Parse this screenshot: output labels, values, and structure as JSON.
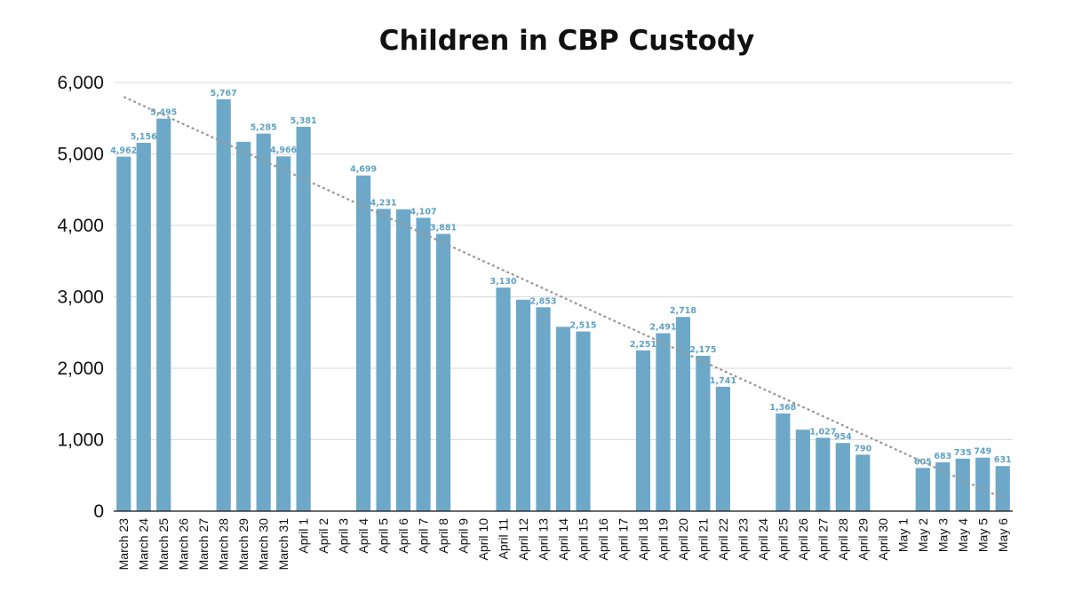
{
  "chart_data": {
    "type": "bar",
    "title": "Children in CBP Custody",
    "xlabel": "",
    "ylabel": "",
    "ylim": [
      0,
      6000
    ],
    "yticks": [
      "0",
      "1,000",
      "2,000",
      "3,000",
      "4,000",
      "5,000",
      "6,000"
    ],
    "grid": true,
    "legend": "none",
    "trendline": {
      "style": "dotted",
      "start_value": 5800,
      "end_value": 180
    },
    "colors": {
      "bar": "#6ea8c8",
      "label": "#5fa2c4",
      "grid": "#d9d9d9",
      "trend": "#999999"
    },
    "categories": [
      "March 23",
      "March 24",
      "March 25",
      "March 26",
      "March 27",
      "March 28",
      "March 29",
      "March 30",
      "March 31",
      "April 1",
      "April 2",
      "April 3",
      "April 4",
      "April 5",
      "April 6",
      "April 7",
      "April 8",
      "April 9",
      "April 10",
      "April 11",
      "April 12",
      "April 13",
      "April 14",
      "April 15",
      "April 16",
      "April 17",
      "April 18",
      "April 19",
      "April 20",
      "April 21",
      "April 22",
      "April 23",
      "April 24",
      "April 25",
      "April 26",
      "April 27",
      "April 28",
      "April 29",
      "April 30",
      "May 1",
      "May 2",
      "May 3",
      "May 4",
      "May 5",
      "May 6"
    ],
    "values": [
      4962,
      5156,
      5495,
      null,
      null,
      5767,
      5170,
      5285,
      4966,
      5381,
      null,
      null,
      4699,
      4231,
      4225,
      4107,
      3881,
      null,
      null,
      3130,
      2960,
      2853,
      2580,
      2515,
      null,
      null,
      2251,
      2491,
      2718,
      2175,
      1741,
      null,
      null,
      1368,
      1140,
      1027,
      954,
      790,
      null,
      null,
      605,
      683,
      735,
      749,
      631
    ],
    "data_labels": [
      "4,962",
      "5,156",
      "5,495",
      null,
      null,
      "5,767",
      null,
      "5,285",
      "4,966",
      "5,381",
      null,
      null,
      "4,699",
      "4,231",
      null,
      "4,107",
      "3,881",
      null,
      null,
      "3,130",
      null,
      "2,853",
      null,
      "2,515",
      null,
      null,
      "2,251",
      "2,491",
      "2,718",
      "2,175",
      "1,741",
      null,
      null,
      "1,368",
      null,
      "1,027",
      "954",
      "790",
      null,
      null,
      "605",
      "683",
      "735",
      "749",
      "631"
    ]
  }
}
